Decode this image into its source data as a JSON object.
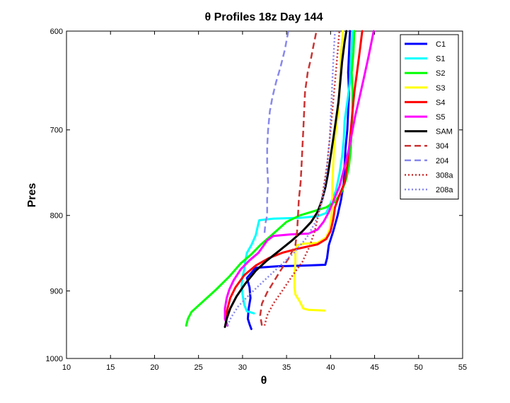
{
  "chart_data": {
    "type": "line",
    "title": "θ Profiles 18z Day 144",
    "xlabel": "θ",
    "ylabel": "Pres",
    "xlim": [
      10,
      55
    ],
    "ylim": [
      1000,
      600
    ],
    "y_reversed": true,
    "y_scale": "log",
    "x_ticks": [
      10,
      15,
      20,
      25,
      30,
      35,
      40,
      45,
      50,
      55
    ],
    "y_ticks": [
      600,
      700,
      800,
      900,
      1000
    ],
    "grid": false,
    "legend_position": "top-right",
    "series": [
      {
        "name": "C1",
        "color": "#0000ff",
        "style": "solid",
        "points": [
          [
            31.0,
            955
          ],
          [
            30.8,
            948
          ],
          [
            30.6,
            940
          ],
          [
            30.7,
            925
          ],
          [
            30.9,
            910
          ],
          [
            30.8,
            895
          ],
          [
            30.5,
            882
          ],
          [
            31.5,
            868
          ],
          [
            34.0,
            866
          ],
          [
            37.0,
            865
          ],
          [
            39.4,
            864
          ],
          [
            39.6,
            855
          ],
          [
            39.8,
            838
          ],
          [
            40.3,
            820
          ],
          [
            40.8,
            800
          ],
          [
            41.2,
            780
          ],
          [
            41.5,
            760
          ],
          [
            41.6,
            740
          ],
          [
            41.7,
            720
          ],
          [
            41.9,
            700
          ],
          [
            42.0,
            680
          ],
          [
            42.1,
            660
          ],
          [
            42.0,
            640
          ],
          [
            42.1,
            620
          ],
          [
            42.2,
            600
          ]
        ]
      },
      {
        "name": "S1",
        "color": "#00ffff",
        "style": "solid",
        "points": [
          [
            31.3,
            932
          ],
          [
            30.5,
            929
          ],
          [
            30.2,
            920
          ],
          [
            30.0,
            905
          ],
          [
            29.9,
            892
          ],
          [
            30.0,
            880
          ],
          [
            30.2,
            870
          ],
          [
            30.3,
            860
          ],
          [
            30.5,
            848
          ],
          [
            31.0,
            838
          ],
          [
            31.5,
            825
          ],
          [
            31.8,
            810
          ],
          [
            31.9,
            806
          ],
          [
            33.5,
            804
          ],
          [
            36.5,
            803
          ],
          [
            38.5,
            801
          ],
          [
            39.5,
            797
          ],
          [
            40.0,
            785
          ],
          [
            40.6,
            770
          ],
          [
            41.0,
            750
          ],
          [
            41.3,
            730
          ],
          [
            41.5,
            710
          ],
          [
            41.6,
            690
          ],
          [
            41.9,
            670
          ],
          [
            42.2,
            650
          ],
          [
            42.3,
            630
          ],
          [
            42.5,
            600
          ]
        ]
      },
      {
        "name": "S2",
        "color": "#00ff00",
        "style": "solid",
        "points": [
          [
            23.6,
            950
          ],
          [
            23.8,
            940
          ],
          [
            24.2,
            930
          ],
          [
            25.5,
            915
          ],
          [
            27.0,
            898
          ],
          [
            28.5,
            880
          ],
          [
            29.8,
            862
          ],
          [
            31.0,
            850
          ],
          [
            32.0,
            838
          ],
          [
            33.0,
            828
          ],
          [
            34.0,
            818
          ],
          [
            35.0,
            808
          ],
          [
            36.5,
            800
          ],
          [
            38.0,
            795
          ],
          [
            39.5,
            790
          ],
          [
            40.5,
            783
          ],
          [
            41.3,
            770
          ],
          [
            41.8,
            755
          ],
          [
            42.1,
            740
          ],
          [
            42.3,
            720
          ],
          [
            42.4,
            700
          ],
          [
            42.5,
            680
          ],
          [
            42.5,
            660
          ],
          [
            42.4,
            640
          ],
          [
            42.6,
            620
          ],
          [
            42.7,
            600
          ]
        ]
      },
      {
        "name": "S3",
        "color": "#ffff00",
        "style": "solid",
        "points": [
          [
            39.3,
            928
          ],
          [
            37.5,
            927
          ],
          [
            36.9,
            925
          ],
          [
            36.5,
            915
          ],
          [
            36.0,
            905
          ],
          [
            35.9,
            895
          ],
          [
            35.9,
            880
          ],
          [
            36.0,
            860
          ],
          [
            36.0,
            845
          ],
          [
            36.2,
            838
          ],
          [
            37.0,
            836
          ],
          [
            38.5,
            835
          ],
          [
            39.5,
            828
          ],
          [
            39.9,
            818
          ],
          [
            40.1,
            800
          ],
          [
            40.2,
            780
          ],
          [
            40.2,
            760
          ],
          [
            40.3,
            740
          ],
          [
            40.4,
            720
          ],
          [
            40.6,
            700
          ],
          [
            40.9,
            680
          ],
          [
            41.0,
            660
          ],
          [
            41.1,
            640
          ],
          [
            41.2,
            620
          ],
          [
            41.4,
            600
          ]
        ]
      },
      {
        "name": "S4",
        "color": "#ff0000",
        "style": "solid",
        "points": [
          [
            28.2,
            948
          ],
          [
            28.1,
            940
          ],
          [
            28.3,
            925
          ],
          [
            28.6,
            910
          ],
          [
            29.2,
            895
          ],
          [
            30.2,
            878
          ],
          [
            31.5,
            865
          ],
          [
            33.0,
            855
          ],
          [
            34.5,
            848
          ],
          [
            36.5,
            842
          ],
          [
            38.5,
            837
          ],
          [
            39.5,
            830
          ],
          [
            40.0,
            820
          ],
          [
            40.3,
            805
          ],
          [
            40.5,
            790
          ],
          [
            41.0,
            775
          ],
          [
            41.6,
            760
          ],
          [
            41.9,
            740
          ],
          [
            42.1,
            720
          ],
          [
            42.3,
            700
          ],
          [
            42.5,
            680
          ],
          [
            42.7,
            660
          ],
          [
            43.0,
            640
          ],
          [
            43.3,
            620
          ],
          [
            43.6,
            600
          ]
        ]
      },
      {
        "name": "S5",
        "color": "#ff00ff",
        "style": "solid",
        "points": [
          [
            28.3,
            950
          ],
          [
            28.0,
            940
          ],
          [
            28.0,
            925
          ],
          [
            28.2,
            910
          ],
          [
            28.5,
            898
          ],
          [
            29.0,
            885
          ],
          [
            29.8,
            870
          ],
          [
            30.8,
            858
          ],
          [
            31.8,
            848
          ],
          [
            32.3,
            840
          ],
          [
            32.8,
            832
          ],
          [
            33.5,
            826
          ],
          [
            35.5,
            824
          ],
          [
            37.5,
            823
          ],
          [
            38.5,
            818
          ],
          [
            39.2,
            808
          ],
          [
            39.8,
            796
          ],
          [
            40.4,
            780
          ],
          [
            41.0,
            765
          ],
          [
            41.5,
            745
          ],
          [
            42.0,
            725
          ],
          [
            42.4,
            705
          ],
          [
            42.8,
            685
          ],
          [
            43.3,
            665
          ],
          [
            43.8,
            645
          ],
          [
            44.3,
            625
          ],
          [
            44.9,
            600
          ]
        ]
      },
      {
        "name": "SAM",
        "color": "#000000",
        "style": "solid",
        "points": [
          [
            28.0,
            952
          ],
          [
            28.2,
            940
          ],
          [
            28.6,
            925
          ],
          [
            29.3,
            908
          ],
          [
            30.3,
            890
          ],
          [
            31.5,
            872
          ],
          [
            32.8,
            858
          ],
          [
            34.2,
            845
          ],
          [
            35.6,
            832
          ],
          [
            36.8,
            820
          ],
          [
            37.8,
            808
          ],
          [
            38.5,
            796
          ],
          [
            39.0,
            782
          ],
          [
            39.4,
            766
          ],
          [
            39.7,
            750
          ],
          [
            40.0,
            730
          ],
          [
            40.3,
            710
          ],
          [
            40.6,
            690
          ],
          [
            40.9,
            670
          ],
          [
            41.1,
            650
          ],
          [
            41.3,
            630
          ],
          [
            41.6,
            610
          ],
          [
            41.8,
            600
          ]
        ]
      },
      {
        "name": "304",
        "color": "#cc3333",
        "style": "dashed",
        "points": [
          [
            32.2,
            950
          ],
          [
            32.0,
            935
          ],
          [
            32.2,
            918
          ],
          [
            32.8,
            902
          ],
          [
            33.5,
            888
          ],
          [
            34.3,
            872
          ],
          [
            35.2,
            856
          ],
          [
            36.0,
            838
          ],
          [
            36.2,
            820
          ],
          [
            36.3,
            800
          ],
          [
            36.4,
            780
          ],
          [
            36.6,
            760
          ],
          [
            36.7,
            740
          ],
          [
            36.8,
            720
          ],
          [
            36.9,
            700
          ],
          [
            37.0,
            680
          ],
          [
            37.1,
            660
          ],
          [
            37.4,
            640
          ],
          [
            37.8,
            625
          ],
          [
            38.1,
            612
          ],
          [
            38.4,
            600
          ]
        ]
      },
      {
        "name": "204",
        "color": "#8888ee",
        "style": "dashed",
        "points": [
          [
            32.5,
            822
          ],
          [
            32.6,
            810
          ],
          [
            32.8,
            800
          ],
          [
            32.8,
            780
          ],
          [
            32.9,
            760
          ],
          [
            32.8,
            740
          ],
          [
            32.8,
            720
          ],
          [
            32.9,
            700
          ],
          [
            33.1,
            680
          ],
          [
            33.4,
            665
          ],
          [
            33.8,
            650
          ],
          [
            34.3,
            635
          ],
          [
            34.8,
            618
          ],
          [
            35.2,
            600
          ]
        ]
      },
      {
        "name": "308a",
        "color": "#cc3333",
        "style": "dotted",
        "points": [
          [
            32.5,
            950
          ],
          [
            32.8,
            935
          ],
          [
            33.5,
            918
          ],
          [
            34.5,
            900
          ],
          [
            35.6,
            880
          ],
          [
            36.8,
            860
          ],
          [
            37.6,
            840
          ],
          [
            38.2,
            820
          ],
          [
            38.6,
            800
          ],
          [
            39.0,
            780
          ],
          [
            39.3,
            760
          ],
          [
            39.6,
            740
          ],
          [
            39.8,
            720
          ],
          [
            40.0,
            700
          ],
          [
            40.2,
            680
          ],
          [
            40.4,
            660
          ],
          [
            40.6,
            640
          ],
          [
            40.8,
            620
          ],
          [
            41.0,
            600
          ]
        ]
      },
      {
        "name": "208a",
        "color": "#8888ee",
        "style": "dotted",
        "points": [
          [
            28.3,
            950
          ],
          [
            28.7,
            938
          ],
          [
            29.5,
            922
          ],
          [
            30.8,
            905
          ],
          [
            32.5,
            885
          ],
          [
            34.3,
            865
          ],
          [
            36.0,
            846
          ],
          [
            37.3,
            828
          ],
          [
            38.2,
            810
          ],
          [
            38.7,
            795
          ],
          [
            39.1,
            780
          ],
          [
            39.3,
            765
          ],
          [
            39.5,
            750
          ],
          [
            39.7,
            730
          ],
          [
            39.9,
            710
          ],
          [
            40.0,
            690
          ],
          [
            40.1,
            670
          ],
          [
            40.2,
            650
          ],
          [
            40.3,
            630
          ],
          [
            40.4,
            615
          ],
          [
            40.5,
            600
          ]
        ]
      }
    ]
  }
}
